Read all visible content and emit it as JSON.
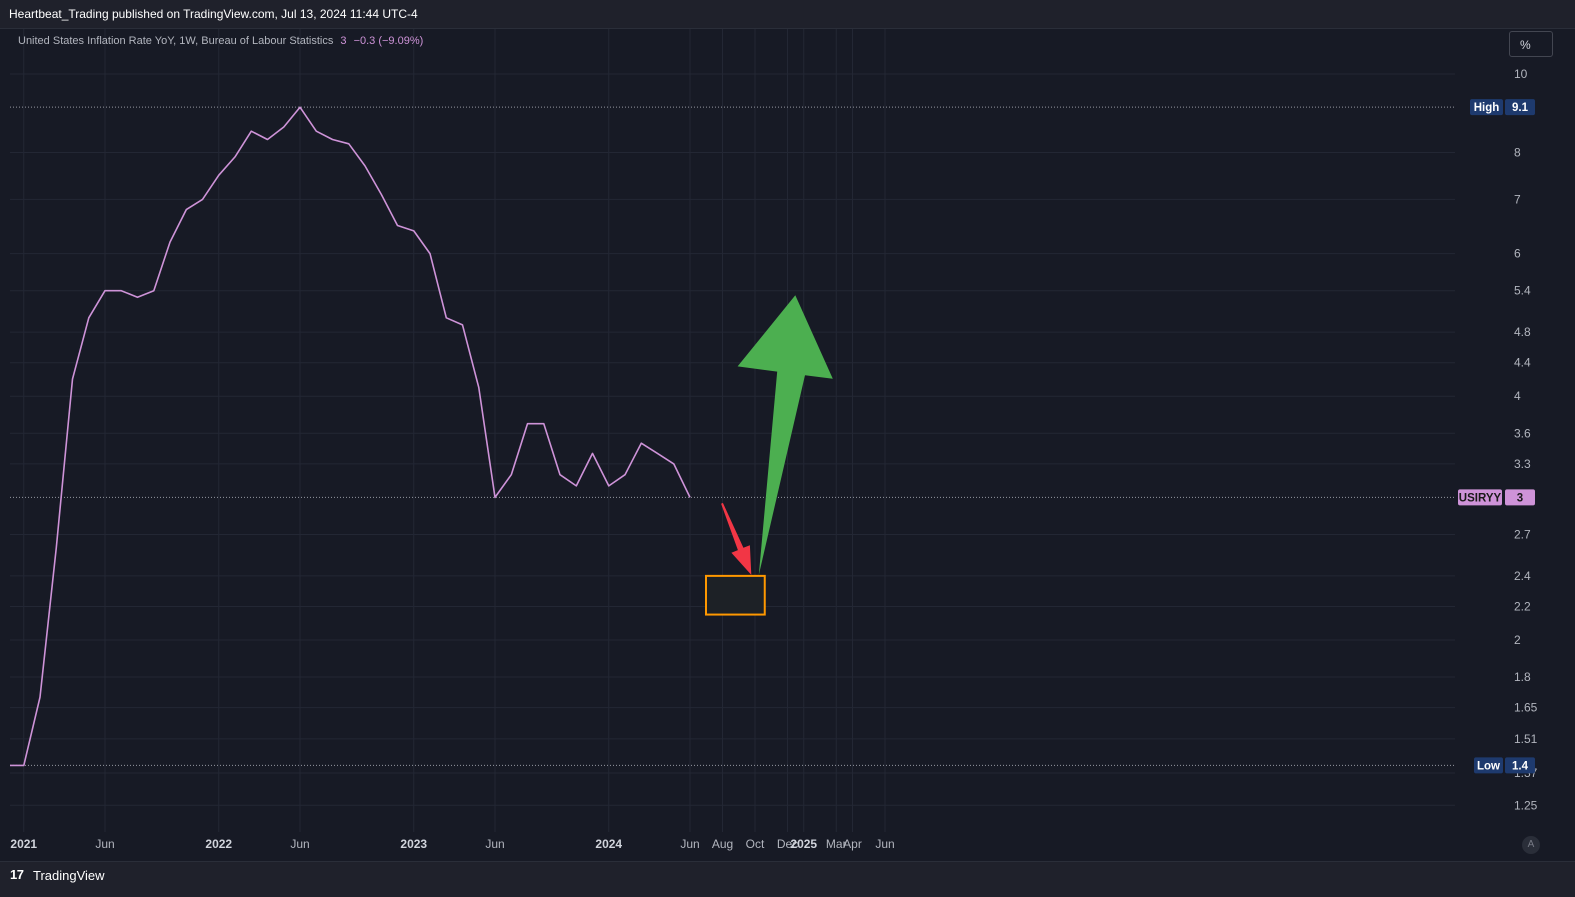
{
  "header": {
    "published_text": "Heartbeat_Trading published on TradingView.com, Jul 13, 2024 11:44 UTC-4"
  },
  "legend": {
    "title": "United States Inflation Rate YoY, 1W, Bureau of Labour Statistics",
    "last": "3",
    "change": "−0.3 (−9.09%)"
  },
  "toolbar": {
    "unit_label": "%",
    "auto_label": "A"
  },
  "footer": {
    "logo": "17",
    "brand": "TradingView"
  },
  "colors": {
    "background": "#171a25",
    "series": "#ce93d8",
    "grid": "#232734",
    "arrow_down": "#f23645",
    "arrow_up": "#4caf50",
    "box_border": "#ff9800",
    "marker_bg": "#1e3a6e"
  },
  "chart_data": {
    "type": "line",
    "scale": "log",
    "ylim": [
      1.2,
      10.5
    ],
    "y_ticks": [
      "10",
      "8",
      "7",
      "6",
      "5.4",
      "4.8",
      "4.4",
      "4",
      "3.6",
      "3.3",
      "2.7",
      "2.4",
      "2.2",
      "2",
      "1.8",
      "1.65",
      "1.51",
      "1.37",
      "1.25"
    ],
    "x_ticks": [
      "2021",
      "Jun",
      "2022",
      "Jun",
      "2023",
      "Jun",
      "2024",
      "Jun",
      "Aug",
      "Oct",
      "Dec",
      "2025",
      "Mar",
      "Apr",
      "Jun"
    ],
    "grid": true,
    "series": [
      {
        "x": [
          "2020-12",
          "2021-01",
          "2021-02",
          "2021-03",
          "2021-04",
          "2021-05",
          "2021-06",
          "2021-07",
          "2021-08",
          "2021-09",
          "2021-10",
          "2021-11",
          "2021-12",
          "2022-01",
          "2022-02",
          "2022-03",
          "2022-04",
          "2022-05",
          "2022-06",
          "2022-07",
          "2022-08",
          "2022-09",
          "2022-10",
          "2022-11",
          "2022-12",
          "2023-01",
          "2023-02",
          "2023-03",
          "2023-04",
          "2023-05",
          "2023-06",
          "2023-07",
          "2023-08",
          "2023-09",
          "2023-10",
          "2023-11",
          "2023-12",
          "2024-01",
          "2024-02",
          "2024-03",
          "2024-04",
          "2024-05",
          "2024-06"
        ],
        "y": [
          1.4,
          1.4,
          1.7,
          2.6,
          4.2,
          5.0,
          5.4,
          5.4,
          5.3,
          5.4,
          6.2,
          6.8,
          7.0,
          7.5,
          7.9,
          8.5,
          8.3,
          8.6,
          9.1,
          8.5,
          8.3,
          8.2,
          7.7,
          7.1,
          6.5,
          6.4,
          6.0,
          5.0,
          4.9,
          4.1,
          3.0,
          3.2,
          3.7,
          3.7,
          3.2,
          3.1,
          3.4,
          3.1,
          3.2,
          3.5,
          3.4,
          3.3,
          3.0
        ]
      }
    ],
    "markers": {
      "high": {
        "label": "High",
        "value": "9.1"
      },
      "low": {
        "label": "Low",
        "value": "1.4"
      },
      "last": {
        "label": "USIRYY",
        "value": "3"
      }
    },
    "annotations": {
      "target_box": {
        "x_from": "2024-06",
        "x_to": "2024-09",
        "y_from": 2.15,
        "y_to": 2.4
      },
      "down_arrow": {
        "from_x": "2024-06",
        "from_y": 2.95,
        "to_x": "2024-07",
        "to_y": 2.4
      },
      "up_arrow": {
        "from_x": "2024-09",
        "from_y": 2.42,
        "to_x": "2024-11",
        "to_y": 5.3
      }
    }
  }
}
